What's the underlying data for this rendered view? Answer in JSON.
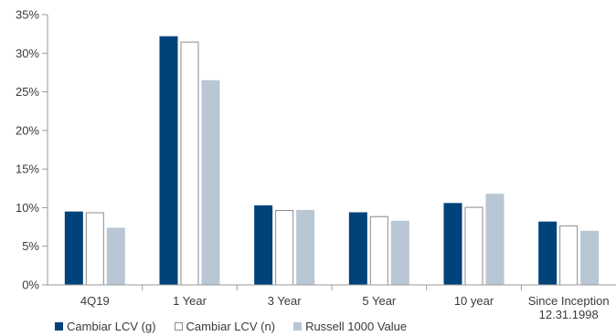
{
  "chart_data": {
    "type": "bar",
    "categories": [
      "4Q19",
      "1 Year",
      "3 Year",
      "5 Year",
      "10 year",
      "Since Inception 12.31.1998"
    ],
    "category_lines": [
      [
        "4Q19"
      ],
      [
        "1 Year"
      ],
      [
        "3 Year"
      ],
      [
        "5 Year"
      ],
      [
        "10 year"
      ],
      [
        "Since Inception",
        "12.31.1998"
      ]
    ],
    "series": [
      {
        "name": "Cambiar LCV (g)",
        "values": [
          9.5,
          32.2,
          10.3,
          9.4,
          10.6,
          8.2
        ],
        "color": "#00427a",
        "fill_style": "solid"
      },
      {
        "name": "Cambiar LCV (n)",
        "values": [
          9.4,
          31.5,
          9.7,
          8.9,
          10.1,
          7.7
        ],
        "color": "#ffffff",
        "border": "#8a8a8a",
        "fill_style": "outline"
      },
      {
        "name": "Russell 1000 Value",
        "values": [
          7.4,
          26.5,
          9.7,
          8.3,
          11.8,
          7.0
        ],
        "color": "#b9c6d3",
        "fill_style": "solid"
      }
    ],
    "ylim": [
      0,
      35
    ],
    "yticks": [
      0,
      5,
      10,
      15,
      20,
      25,
      30,
      35
    ],
    "ytick_labels": [
      "0%",
      "5%",
      "10%",
      "15%",
      "20%",
      "25%",
      "30%",
      "35%"
    ],
    "grid": false,
    "legend_position": "bottom-left",
    "title": "",
    "xlabel": "",
    "ylabel": ""
  }
}
